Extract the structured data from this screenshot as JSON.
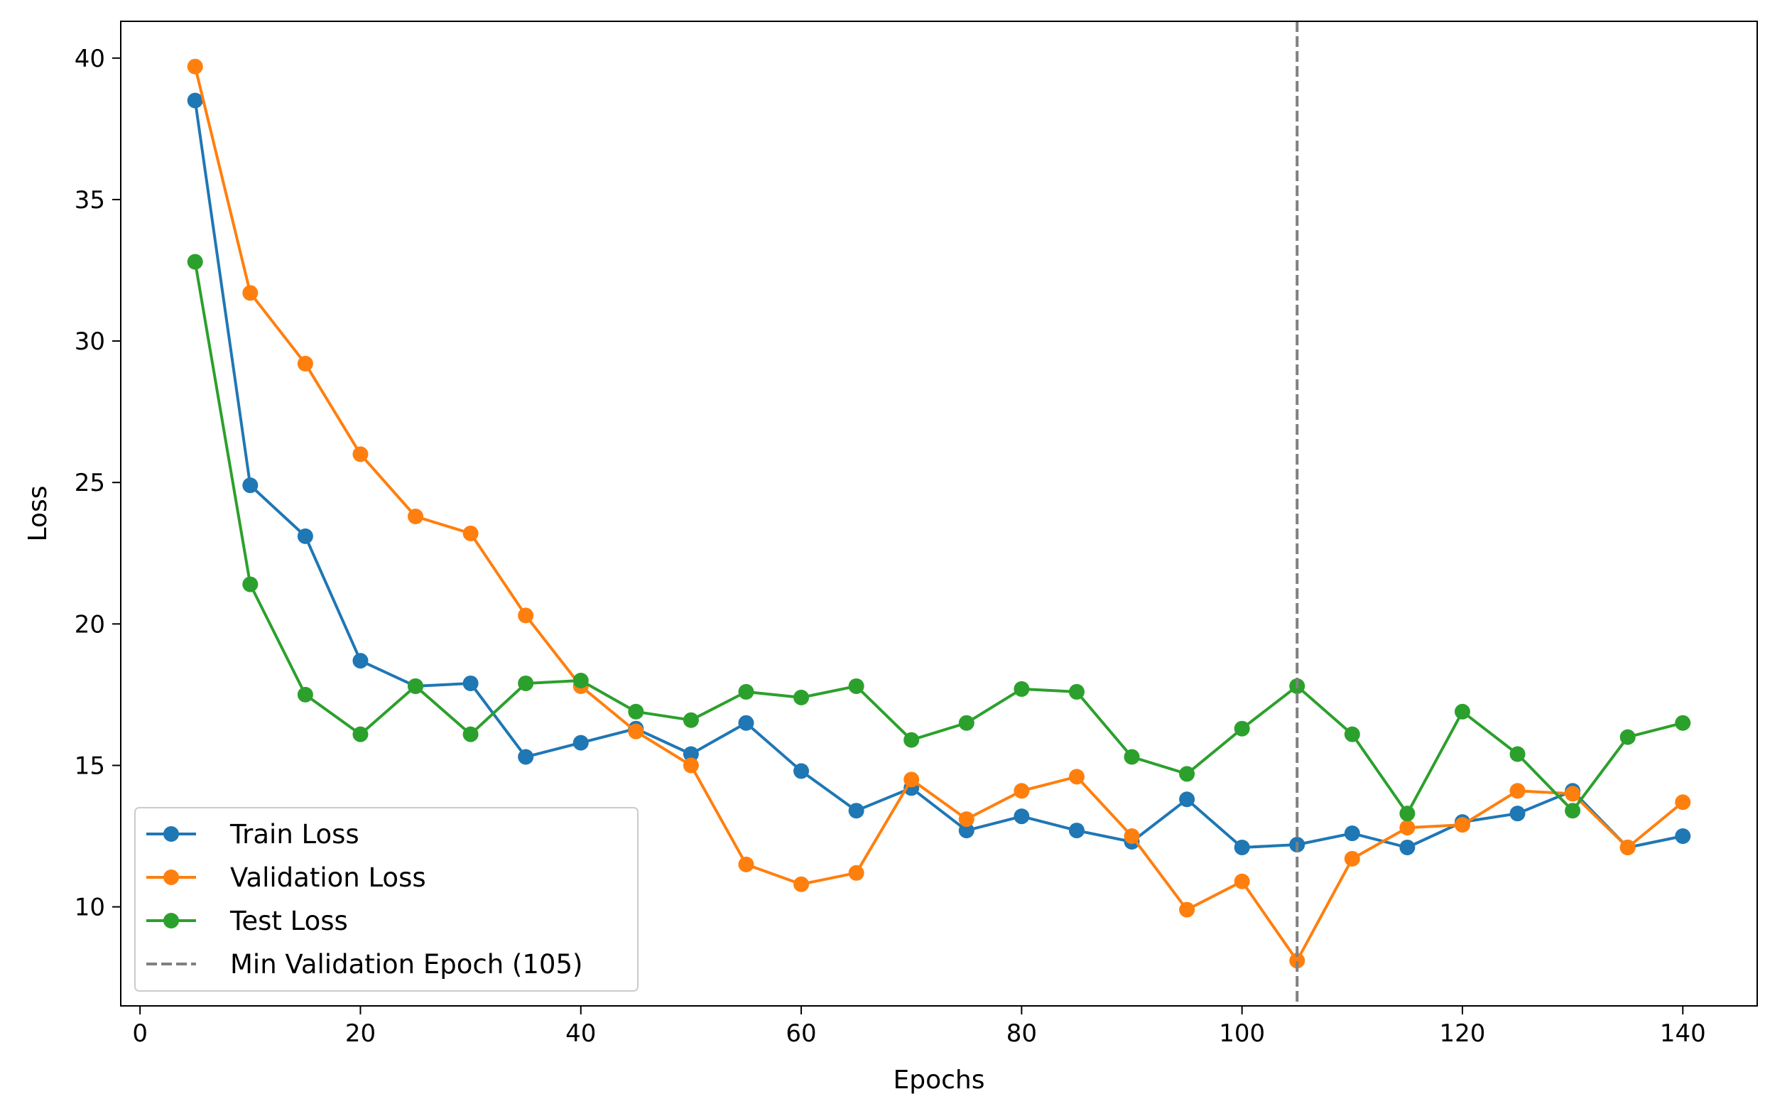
{
  "chart_data": {
    "type": "line",
    "title": "",
    "xlabel": "Epochs",
    "ylabel": "Loss",
    "xlim": [
      -1.75,
      146.75
    ],
    "ylim": [
      6.5,
      41.3
    ],
    "xticks": [
      0,
      20,
      40,
      60,
      80,
      100,
      120,
      140
    ],
    "yticks": [
      10,
      15,
      20,
      25,
      30,
      35,
      40
    ],
    "grid": false,
    "legend_position": "lower-left",
    "x": [
      5,
      10,
      15,
      20,
      25,
      30,
      35,
      40,
      45,
      50,
      55,
      60,
      65,
      70,
      75,
      80,
      85,
      90,
      95,
      100,
      105,
      110,
      115,
      120,
      125,
      130,
      135,
      140
    ],
    "series": [
      {
        "name": "Train Loss",
        "color": "#1f77b4",
        "values": [
          38.5,
          24.9,
          23.1,
          18.7,
          17.8,
          17.9,
          15.3,
          15.8,
          16.3,
          15.4,
          16.5,
          14.8,
          13.4,
          14.2,
          12.7,
          13.2,
          12.7,
          12.3,
          13.8,
          12.1,
          12.2,
          12.6,
          12.1,
          13.0,
          13.3,
          14.1,
          12.1,
          12.5
        ]
      },
      {
        "name": "Validation Loss",
        "color": "#ff7f0e",
        "values": [
          39.7,
          31.7,
          29.2,
          26.0,
          23.8,
          23.2,
          20.3,
          17.8,
          16.2,
          15.0,
          11.5,
          10.8,
          11.2,
          14.5,
          13.1,
          14.1,
          14.6,
          12.5,
          9.9,
          10.9,
          8.1,
          11.7,
          12.8,
          12.9,
          14.1,
          14.0,
          12.1,
          13.7
        ]
      },
      {
        "name": "Test Loss",
        "color": "#2ca02c",
        "values": [
          32.8,
          21.4,
          17.5,
          16.1,
          17.8,
          16.1,
          17.9,
          18.0,
          16.9,
          16.6,
          17.6,
          17.4,
          17.8,
          15.9,
          16.5,
          17.7,
          17.6,
          15.3,
          14.7,
          16.3,
          17.8,
          16.1,
          13.3,
          16.9,
          15.4,
          13.4,
          16.0,
          16.5
        ]
      }
    ],
    "reference_line": {
      "name": "Min Validation Epoch (105)",
      "x": 105,
      "color": "#808080",
      "style": "dashed"
    }
  }
}
